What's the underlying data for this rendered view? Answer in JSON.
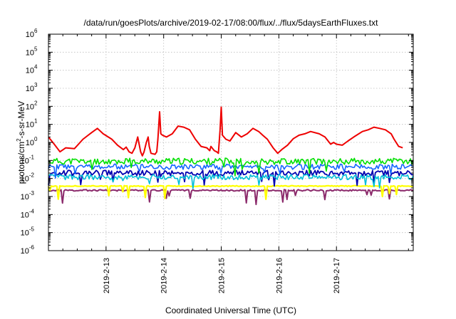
{
  "chart_data": {
    "type": "line",
    "title": "/data/run/goesPlots/archive/2019-02-17/08:00/flux/../flux/5daysEarthFluxes.txt",
    "xlabel": "Coordinated Universal Time (UTC)",
    "ylabel": "protons/cm²-s-sr-MeV",
    "ylabel_parts": {
      "base": "protons/cm",
      "sup": "2",
      "rest": "-s-sr-MeV"
    },
    "yscale": "log",
    "ylim": [
      1e-06,
      1000000.0
    ],
    "xlim": [
      "2019-02-12 00:00",
      "2019-02-17 08:00"
    ],
    "grid": true,
    "ytick_labels": [
      {
        "base": "10",
        "exp": "-6"
      },
      {
        "base": "10",
        "exp": "-5"
      },
      {
        "base": "10",
        "exp": "-4"
      },
      {
        "base": "10",
        "exp": "-3"
      },
      {
        "base": "10",
        "exp": "-2"
      },
      {
        "base": "10",
        "exp": "-1"
      },
      {
        "base": "10",
        "exp": "0"
      },
      {
        "base": "10",
        "exp": "1"
      },
      {
        "base": "10",
        "exp": "2"
      },
      {
        "base": "10",
        "exp": "3"
      },
      {
        "base": "10",
        "exp": "4"
      },
      {
        "base": "10",
        "exp": "5"
      },
      {
        "base": "10",
        "exp": "6"
      }
    ],
    "xtick_labels": [
      "2019-2-13",
      "2019-2-14",
      "2019-2-15",
      "2019-2-16",
      "2019-2-17"
    ],
    "xticks_days": [
      1,
      2,
      3,
      4,
      5
    ],
    "series": [
      {
        "color": "#ee0000",
        "width": 2.0,
        "points": [
          [
            0.0,
            2.0
          ],
          [
            0.1,
            0.8
          ],
          [
            0.2,
            0.3
          ],
          [
            0.3,
            0.5
          ],
          [
            0.45,
            0.45
          ],
          [
            0.6,
            1.5
          ],
          [
            0.75,
            3.5
          ],
          [
            0.85,
            6
          ],
          [
            0.95,
            3
          ],
          [
            1.1,
            1.5
          ],
          [
            1.2,
            0.7
          ],
          [
            1.3,
            0.4
          ],
          [
            1.35,
            0.55
          ],
          [
            1.4,
            0.3
          ],
          [
            1.45,
            0.25
          ],
          [
            1.5,
            0.5
          ],
          [
            1.55,
            2
          ],
          [
            1.6,
            0.3
          ],
          [
            1.63,
            0.18
          ],
          [
            1.66,
            0.3
          ],
          [
            1.7,
            1
          ],
          [
            1.73,
            2
          ],
          [
            1.75,
            0.6
          ],
          [
            1.78,
            0.25
          ],
          [
            1.85,
            0.22
          ],
          [
            1.88,
            0.3
          ],
          [
            1.9,
            1.5
          ],
          [
            1.93,
            50
          ],
          [
            1.95,
            3
          ],
          [
            1.98,
            2.5
          ],
          [
            2.05,
            2
          ],
          [
            2.15,
            3
          ],
          [
            2.25,
            8
          ],
          [
            2.35,
            7
          ],
          [
            2.45,
            5
          ],
          [
            2.55,
            1.5
          ],
          [
            2.65,
            0.6
          ],
          [
            2.75,
            0.5
          ],
          [
            2.8,
            0.35
          ],
          [
            2.82,
            0.6
          ],
          [
            2.88,
            0.35
          ],
          [
            2.92,
            0.3
          ],
          [
            2.95,
            0.25
          ],
          [
            2.98,
            5
          ],
          [
            3.0,
            90
          ],
          [
            3.02,
            2.5
          ],
          [
            3.08,
            1.5
          ],
          [
            3.15,
            1.2
          ],
          [
            3.25,
            3.5
          ],
          [
            3.35,
            2
          ],
          [
            3.45,
            3
          ],
          [
            3.55,
            6
          ],
          [
            3.65,
            4
          ],
          [
            3.72,
            2.5
          ],
          [
            3.8,
            1.5
          ],
          [
            3.9,
            0.5
          ],
          [
            3.98,
            0.25
          ],
          [
            4.05,
            0.4
          ],
          [
            4.15,
            0.7
          ],
          [
            4.25,
            1.6
          ],
          [
            4.35,
            2.5
          ],
          [
            4.45,
            3
          ],
          [
            4.55,
            4
          ],
          [
            4.7,
            3
          ],
          [
            4.8,
            2
          ],
          [
            4.9,
            0.8
          ],
          [
            4.95,
            1
          ],
          [
            5.0,
            0.8
          ],
          [
            5.1,
            0.7
          ],
          [
            5.2,
            1.2
          ],
          [
            5.3,
            2
          ],
          [
            5.45,
            4
          ],
          [
            5.55,
            5
          ],
          [
            5.65,
            7
          ],
          [
            5.75,
            6
          ],
          [
            5.85,
            5
          ],
          [
            5.95,
            3
          ],
          [
            6.0,
            1.5
          ],
          [
            6.08,
            0.6
          ],
          [
            6.15,
            0.5
          ]
        ]
      },
      {
        "color": "#00e000",
        "width": 1.6,
        "base": 0.09,
        "amp": 0.35,
        "seed": 11
      },
      {
        "color": "#1466ff",
        "width": 1.6,
        "base": 0.045,
        "amp": 0.3,
        "seed": 23
      },
      {
        "color": "#00bfd8",
        "width": 1.6,
        "base": 0.012,
        "amp": 0.3,
        "seed": 37
      },
      {
        "color": "#0000b0",
        "width": 1.8,
        "base": 0.02,
        "amp": 0.3,
        "seed": 53
      },
      {
        "color": "#ffff00",
        "width": 2.2,
        "base": 0.0038,
        "amp": 0.05,
        "seed": 71
      },
      {
        "color": "#8b2a6b",
        "width": 2.0,
        "base": 0.0022,
        "amp": 0.08,
        "seed": 89
      }
    ]
  }
}
